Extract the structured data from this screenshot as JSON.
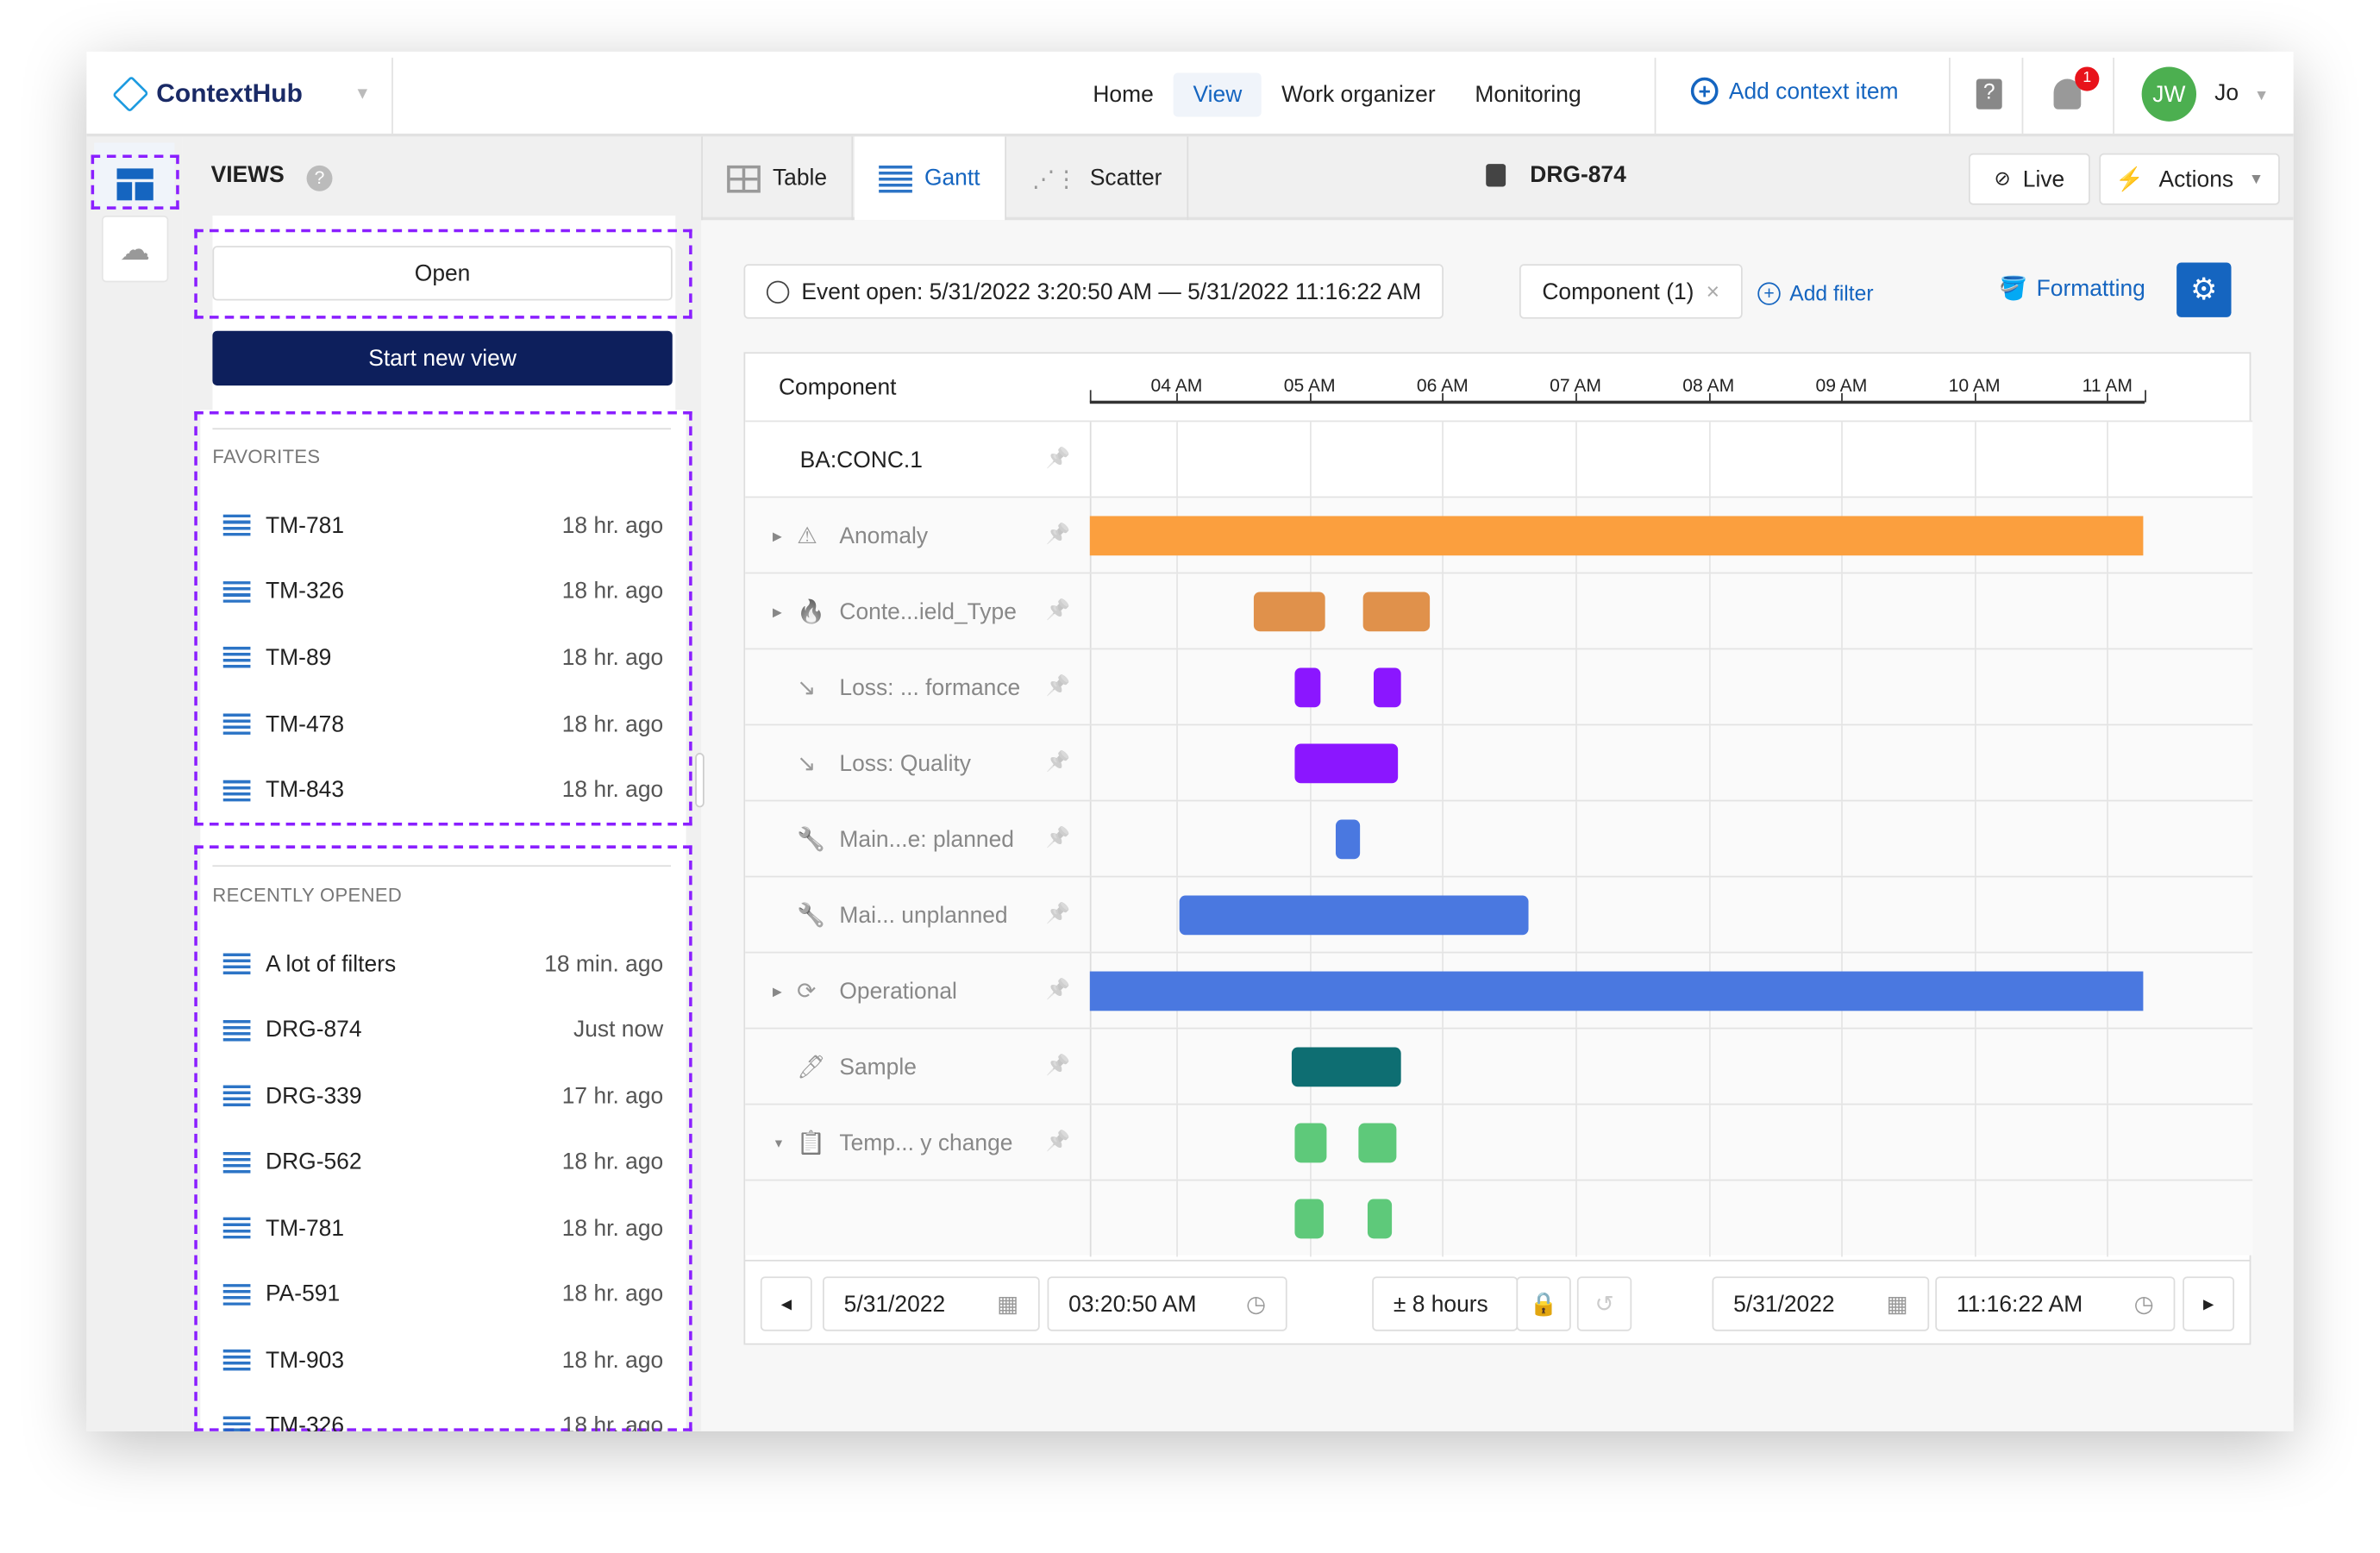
{
  "app": {
    "name": "ContextHub"
  },
  "nav": {
    "items": [
      "Home",
      "View",
      "Work organizer",
      "Monitoring"
    ],
    "active": "View",
    "add_context": "Add context item",
    "notifications": "1",
    "avatar_initials": "JW",
    "user": "Jo"
  },
  "sidebar": {
    "title": "VIEWS",
    "open": "Open",
    "start_new": "Start new view",
    "favorites_title": "FAVORITES",
    "favorites": [
      {
        "name": "TM-781",
        "ago": "18 hr. ago"
      },
      {
        "name": "TM-326",
        "ago": "18 hr. ago"
      },
      {
        "name": "TM-89",
        "ago": "18 hr. ago"
      },
      {
        "name": "TM-478",
        "ago": "18 hr. ago"
      },
      {
        "name": "TM-843",
        "ago": "18 hr. ago"
      }
    ],
    "recent_title": "RECENTLY OPENED",
    "recent": [
      {
        "name": "A lot of filters",
        "ago": "18 min. ago"
      },
      {
        "name": "DRG-874",
        "ago": "Just now"
      },
      {
        "name": "DRG-339",
        "ago": "17 hr. ago"
      },
      {
        "name": "DRG-562",
        "ago": "18 hr. ago"
      },
      {
        "name": "TM-781",
        "ago": "18 hr. ago"
      },
      {
        "name": "PA-591",
        "ago": "18 hr. ago"
      },
      {
        "name": "TM-903",
        "ago": "18 hr. ago"
      },
      {
        "name": "TM-326",
        "ago": "18 hr. ago"
      }
    ]
  },
  "toolbar": {
    "tabs": [
      "Table",
      "Gantt",
      "Scatter"
    ],
    "active": "Gantt",
    "view_name": "DRG-874",
    "live": "Live",
    "actions": "Actions"
  },
  "filters": {
    "event": "Event open: 5/31/2022 3:20:50 AM — 5/31/2022 11:16:22 AM",
    "component": "Component (1)",
    "add_filter": "Add filter",
    "formatting": "Formatting"
  },
  "chart_data": {
    "type": "gantt",
    "column_header": "Component",
    "ticks": [
      "04 AM",
      "05 AM",
      "06 AM",
      "07 AM",
      "08 AM",
      "09 AM",
      "10 AM",
      "11 AM"
    ],
    "range": [
      "03:20:50",
      "11:16:22"
    ],
    "rows": [
      {
        "label": "BA:CONC.1",
        "icon": "none",
        "color": "",
        "bars": []
      },
      {
        "label": "Anomaly",
        "icon": "warning-icon",
        "color": "#fb9f3e",
        "bars": [
          [
            "03:20:50",
            "11:16:22"
          ]
        ]
      },
      {
        "label": "Conte...ield_Type",
        "icon": "flame-icon",
        "color": "#e0914b",
        "bars": [
          [
            "04:35",
            "05:07"
          ],
          [
            "05:24",
            "05:54"
          ]
        ]
      },
      {
        "label": "Loss: ... formance",
        "icon": "trend-down-icon",
        "color": "#8b16ff",
        "bars": [
          [
            "04:53",
            "05:05"
          ],
          [
            "05:29",
            "05:41"
          ]
        ]
      },
      {
        "label": "Loss: Quality",
        "icon": "trend-down-icon",
        "color": "#8b16ff",
        "bars": [
          [
            "04:53",
            "05:40"
          ]
        ]
      },
      {
        "label": "Main...e: planned",
        "icon": "wrench-icon",
        "color": "#4a78e0",
        "bars": [
          [
            "05:12",
            "05:23"
          ]
        ]
      },
      {
        "label": "Mai... unplanned",
        "icon": "wrench-icon",
        "color": "#4a78e0",
        "bars": [
          [
            "04:01",
            "06:39"
          ]
        ]
      },
      {
        "label": "Operational",
        "icon": "cycle-icon",
        "color": "#4a78e0",
        "bars": [
          [
            "03:20:50",
            "11:16:22"
          ]
        ]
      },
      {
        "label": "Sample",
        "icon": "pipette-icon",
        "color": "#0e6e72",
        "bars": [
          [
            "04:52",
            "05:41"
          ]
        ]
      },
      {
        "label": "Temp... y change",
        "icon": "clipboard-icon",
        "color": "#5ec97a",
        "bars": [
          [
            "04:53",
            "05:08"
          ],
          [
            "05:22",
            "05:39"
          ]
        ]
      },
      {
        "label": "",
        "icon": "none",
        "color": "#5ec97a",
        "bars": [
          [
            "04:53",
            "05:06"
          ],
          [
            "05:26",
            "05:37"
          ]
        ]
      }
    ]
  },
  "footer": {
    "start_date": "5/31/2022",
    "start_time": "03:20:50 AM",
    "span": "± 8 hours",
    "end_date": "5/31/2022",
    "end_time": "11:16:22 AM"
  }
}
